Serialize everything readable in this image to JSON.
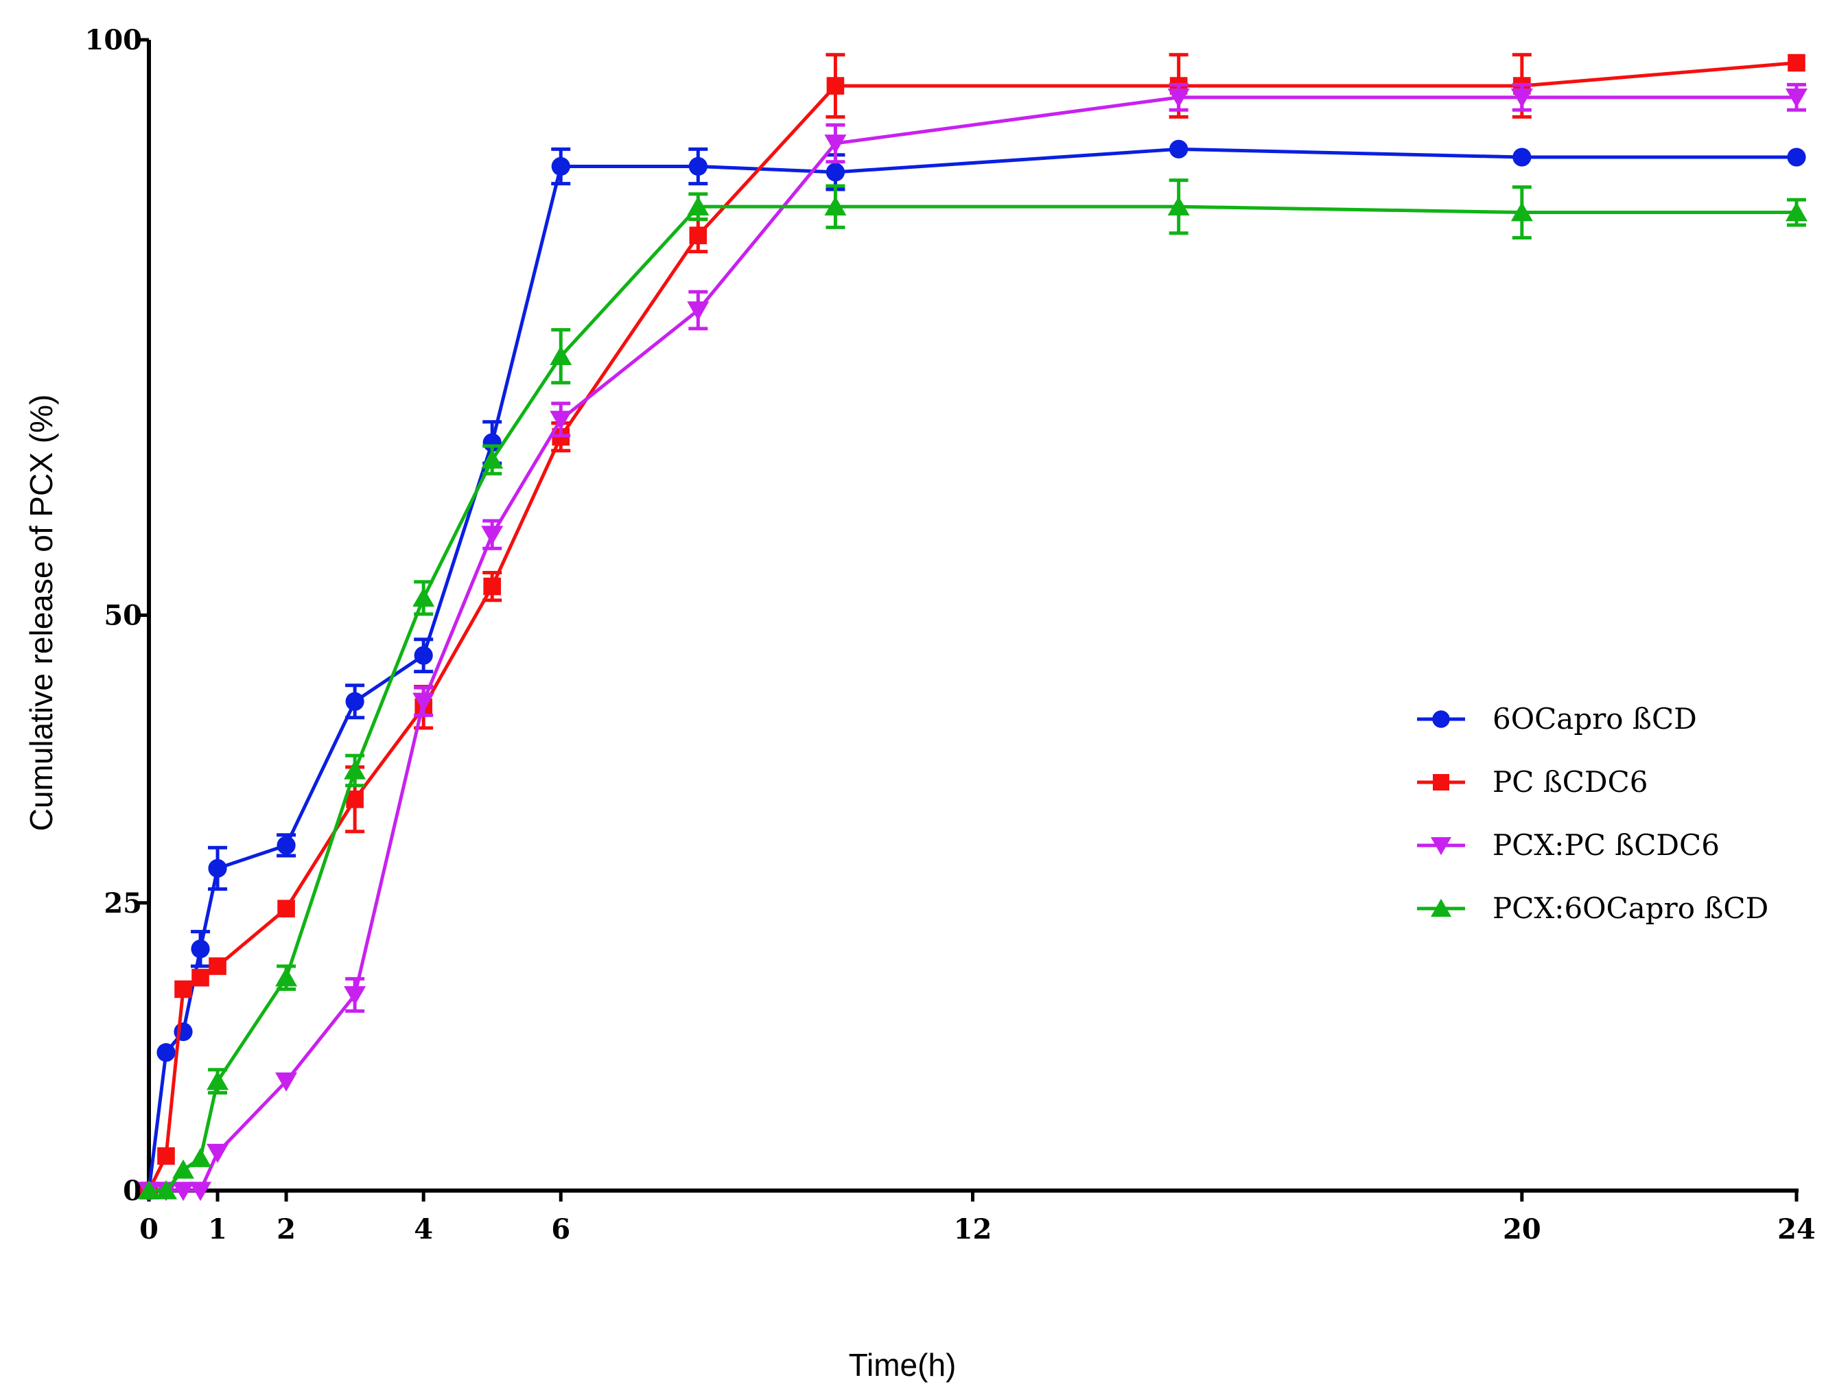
{
  "chart_data": {
    "type": "line",
    "title": "",
    "xlabel": "Time(h)",
    "ylabel": "Cumulative release of PCX (%)",
    "xlim": [
      0,
      24
    ],
    "ylim": [
      0,
      100
    ],
    "xticks": [
      0,
      1,
      2,
      4,
      6,
      12,
      20,
      24
    ],
    "yticks": [
      0,
      25,
      50,
      100
    ],
    "grid": false,
    "legend_position": "center-right",
    "series": [
      {
        "name": "6OCapro ßCD",
        "color": "#0a1fe0",
        "marker": "circle",
        "x": [
          0,
          0.25,
          0.5,
          0.75,
          1,
          2,
          3,
          4,
          5,
          6,
          8,
          10,
          15,
          20,
          24
        ],
        "y": [
          0,
          12,
          13.8,
          21,
          28,
          30,
          42.5,
          46.5,
          65,
          89,
          89,
          88.5,
          90.5,
          89.8,
          89.8
        ],
        "err": [
          0,
          0,
          0,
          1.5,
          1.8,
          0.9,
          1.4,
          1.4,
          1.8,
          1.5,
          1.5,
          1.5,
          0,
          0,
          0
        ]
      },
      {
        "name": "PC ßCDC6",
        "color": "#f50f0f",
        "marker": "square",
        "x": [
          0,
          0.25,
          0.5,
          0.75,
          1,
          2,
          3,
          4,
          5,
          6,
          8,
          10,
          15,
          20,
          24
        ],
        "y": [
          0,
          3,
          17.5,
          18.5,
          19.5,
          24.5,
          34,
          42,
          52.5,
          65.5,
          83,
          96,
          96,
          96,
          98
        ],
        "err": [
          0,
          0,
          0,
          0,
          0,
          0,
          2.8,
          1.8,
          1.2,
          1.2,
          1.4,
          2.7,
          2.7,
          2.7,
          0
        ]
      },
      {
        "name": "PCX:PC ßCDC6",
        "color": "#c821ef",
        "marker": "triangle-down",
        "x": [
          0,
          0.25,
          0.5,
          0.75,
          1,
          2,
          3,
          4,
          5,
          6,
          8,
          10,
          15,
          20,
          24
        ],
        "y": [
          0,
          0,
          0,
          0,
          3.3,
          9.5,
          17,
          42.5,
          57,
          67,
          76.5,
          91,
          95,
          95,
          95
        ],
        "err": [
          0,
          0,
          0,
          0,
          0,
          0,
          1.4,
          1.2,
          1.2,
          1.4,
          1.6,
          1.6,
          1.1,
          1.1,
          1.1
        ]
      },
      {
        "name": "PCX:6OCapro ßCD",
        "color": "#10b315",
        "marker": "triangle-up",
        "x": [
          0,
          0.25,
          0.5,
          0.75,
          1,
          2,
          3,
          4,
          5,
          6,
          8,
          10,
          15,
          20,
          24
        ],
        "y": [
          0,
          0,
          1.8,
          2.8,
          9.5,
          18.5,
          36.5,
          51.5,
          63.5,
          72.5,
          85.5,
          85.5,
          85.5,
          85,
          85
        ],
        "err": [
          0,
          0,
          0,
          0,
          1,
          1,
          1.3,
          1.4,
          1.2,
          2.3,
          1.1,
          1.8,
          2.3,
          2.2,
          1.1
        ]
      }
    ]
  }
}
